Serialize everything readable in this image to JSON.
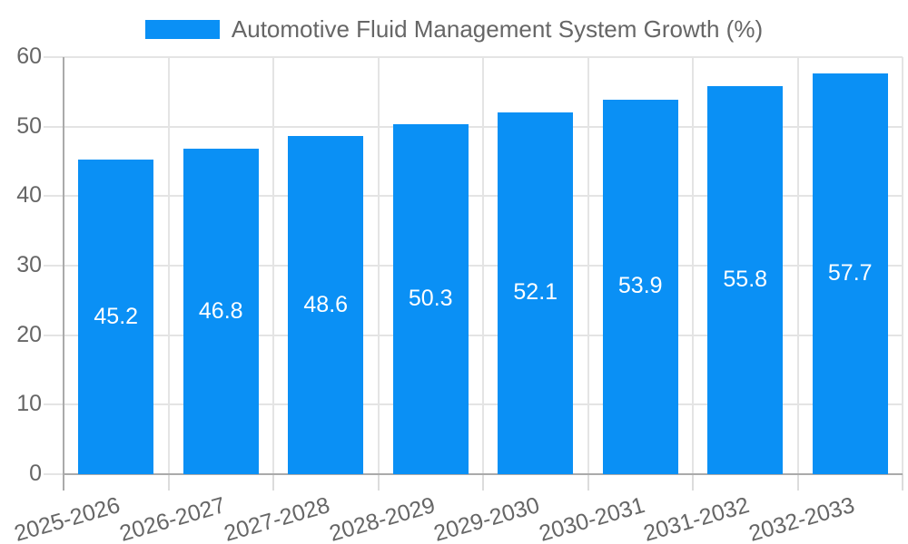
{
  "legend": {
    "label": "Automotive Fluid Management System Growth (%)"
  },
  "chart_data": {
    "type": "bar",
    "title": "Automotive Fluid Management System Growth (%)",
    "legend_position": "top",
    "categories": [
      "2025-2026",
      "2026-2027",
      "2027-2028",
      "2028-2029",
      "2029-2030",
      "2030-2031",
      "2031-2032",
      "2032-2033"
    ],
    "series": [
      {
        "name": "Automotive Fluid Management System Growth (%)",
        "values": [
          45.2,
          46.8,
          48.6,
          50.3,
          52.1,
          53.9,
          55.8,
          57.7
        ]
      }
    ],
    "bar_value_labels": [
      "45.2",
      "46.8",
      "48.6",
      "50.3",
      "52.1",
      "53.9",
      "55.8",
      "57.7"
    ],
    "xlabel": "",
    "ylabel": "",
    "ylim": [
      0,
      60
    ],
    "yticks": [
      0,
      10,
      20,
      30,
      40,
      50,
      60
    ],
    "grid": true,
    "style": {
      "bar_color": "#0a90f5",
      "bar_label_color": "#ffffff",
      "grid_color": "#e4e4e4",
      "axis_line_color": "#aaaaaa",
      "tick_color": "#dcdcdc",
      "tick_label_color": "#666666",
      "legend_text_color": "#666666",
      "background": "#ffffff"
    }
  }
}
